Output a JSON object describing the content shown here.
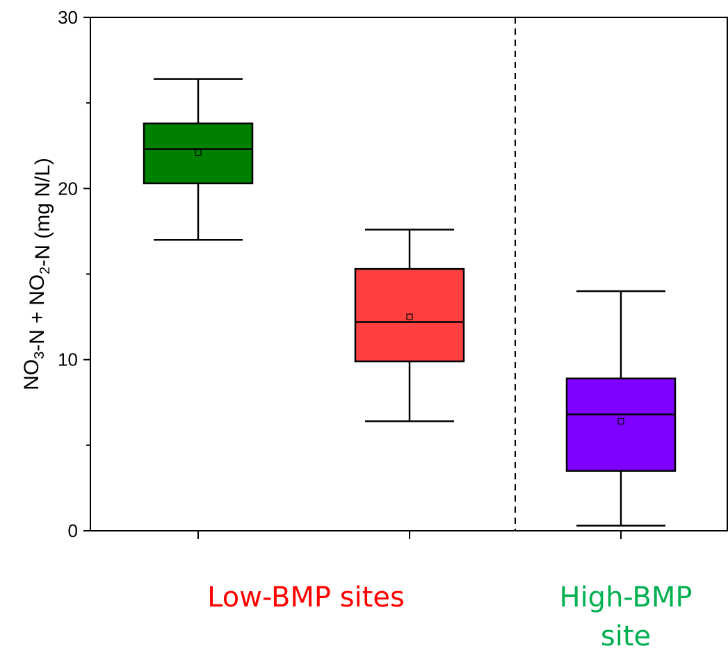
{
  "chart_data": {
    "type": "box",
    "ylabel": {
      "parts": [
        {
          "t": "NO"
        },
        {
          "t": "3",
          "sub": true
        },
        {
          "t": "-N + NO"
        },
        {
          "t": "2",
          "sub": true
        },
        {
          "t": "-N (mg N/L)"
        }
      ]
    },
    "ylim": [
      0,
      30
    ],
    "yticks": [
      "0",
      "10",
      "20",
      "30"
    ],
    "grid": false,
    "boxes": [
      {
        "whisker_low": 17.0,
        "q1": 20.3,
        "median": 22.3,
        "q3": 23.8,
        "whisker_high": 26.4,
        "mean": 22.1,
        "color": "#008000"
      },
      {
        "whisker_low": 6.4,
        "q1": 9.9,
        "median": 12.2,
        "q3": 15.3,
        "whisker_high": 17.6,
        "mean": 12.5,
        "color": "#FF4040"
      },
      {
        "whisker_low": 0.3,
        "q1": 3.5,
        "median": 6.8,
        "q3": 8.9,
        "whisker_high": 14.0,
        "mean": 6.4,
        "color": "#8000FF"
      }
    ],
    "groups": [
      {
        "label": "Low-BMP sites",
        "color": "#FF0000"
      },
      {
        "label": "High-BMP\nsite",
        "color": "#00B050"
      }
    ]
  }
}
